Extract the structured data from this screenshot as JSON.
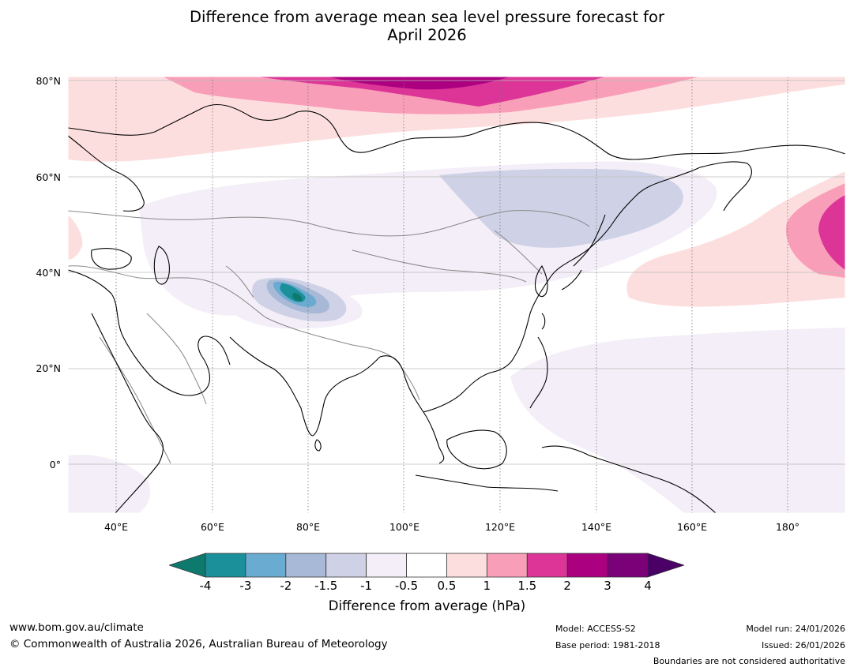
{
  "title_line1": "Difference from average mean sea level pressure forecast for",
  "title_line2": "April 2026",
  "map": {
    "lat_labels": [
      "80°N",
      "60°N",
      "40°N",
      "20°N",
      "0°"
    ],
    "lon_labels": [
      "40°E",
      "60°E",
      "80°E",
      "100°E",
      "120°E",
      "140°E",
      "160°E",
      "180°"
    ]
  },
  "colorbar": {
    "ticks": [
      "-4",
      "-3",
      "-2",
      "-1.5",
      "-1",
      "-0.5",
      "0.5",
      "1",
      "1.5",
      "2",
      "3",
      "4"
    ],
    "colors": [
      "#0e7a6e",
      "#1b8f9a",
      "#6aabd2",
      "#a7b9d6",
      "#cfd2e6",
      "#f3eef7",
      "#ffffff",
      "#fddede",
      "#f99eb9",
      "#dc3597",
      "#ab0080",
      "#7a0177",
      "#4a0066"
    ],
    "label": "Difference from average (hPa)"
  },
  "footer": {
    "website": "www.bom.gov.au/climate",
    "copyright": "© Commonwealth of Australia 2026, Australian Bureau of Meteorology",
    "model": "Model: ACCESS-S2",
    "base_period": "Base period: 1981-2018",
    "model_run": "Model run: 24/01/2026",
    "issued": "Issued: 26/01/2026",
    "disclaimer": "Boundaries are not considered authoritative"
  }
}
